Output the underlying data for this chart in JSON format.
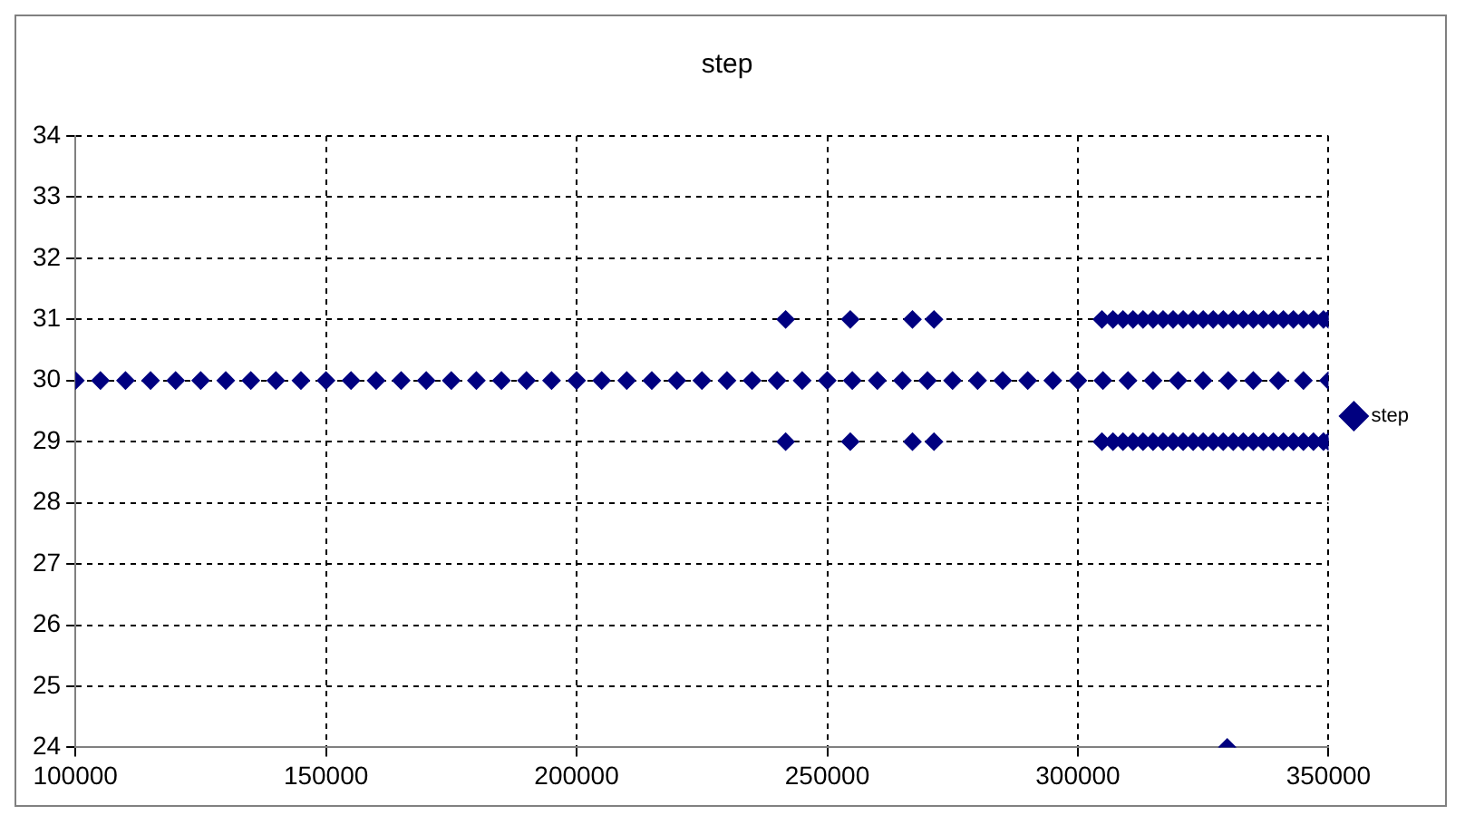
{
  "chart_data": {
    "type": "scatter",
    "title": "step",
    "xlim": [
      100000,
      350000
    ],
    "xticks": [
      100000,
      150000,
      200000,
      250000,
      300000,
      350000
    ],
    "ylim": [
      24,
      34
    ],
    "yticks": [
      24,
      25,
      26,
      27,
      28,
      29,
      30,
      31,
      32,
      33,
      34
    ],
    "grid": true,
    "legend": "right",
    "marker": "diamond",
    "series": [
      {
        "name": "step",
        "color": "#000080",
        "x": [
          100000,
          105000,
          110000,
          115000,
          120000,
          125000,
          130000,
          135000,
          140000,
          145000,
          150000,
          155000,
          160000,
          165000,
          170000,
          175000,
          180000,
          185000,
          190000,
          195000,
          200000,
          205000,
          210000,
          215000,
          220000,
          225000,
          230000,
          235000,
          240000,
          245000,
          250000,
          255000,
          260000,
          265000,
          270000,
          275000,
          280000,
          285000,
          290000,
          295000,
          300000,
          305000,
          310000,
          315000,
          320000,
          325000,
          330000,
          335000,
          340000,
          345000,
          350000,
          241700,
          254600,
          267000,
          271300,
          304800,
          307000,
          309000,
          311000,
          313000,
          315000,
          317000,
          319000,
          321000,
          323000,
          325000,
          327000,
          329000,
          331000,
          333000,
          335000,
          337000,
          339000,
          341000,
          343000,
          345000,
          347000,
          349000,
          350000,
          241700,
          254600,
          267000,
          271300,
          304800,
          307000,
          309000,
          311000,
          313000,
          315000,
          317000,
          319000,
          321000,
          323000,
          325000,
          327000,
          329000,
          331000,
          333000,
          335000,
          337000,
          339000,
          341000,
          343000,
          345000,
          347000,
          349000,
          350000,
          329800
        ],
        "values": [
          30,
          30,
          30,
          30,
          30,
          30,
          30,
          30,
          30,
          30,
          30,
          30,
          30,
          30,
          30,
          30,
          30,
          30,
          30,
          30,
          30,
          30,
          30,
          30,
          30,
          30,
          30,
          30,
          30,
          30,
          30,
          30,
          30,
          30,
          30,
          30,
          30,
          30,
          30,
          30,
          30,
          30,
          30,
          30,
          30,
          30,
          30,
          30,
          30,
          30,
          30,
          31,
          31,
          31,
          31,
          31,
          31,
          31,
          31,
          31,
          31,
          31,
          31,
          31,
          31,
          31,
          31,
          31,
          31,
          31,
          31,
          31,
          31,
          31,
          31,
          31,
          31,
          31,
          31,
          29,
          29,
          29,
          29,
          29,
          29,
          29,
          29,
          29,
          29,
          29,
          29,
          29,
          29,
          29,
          29,
          29,
          29,
          29,
          29,
          29,
          29,
          29,
          29,
          29,
          29,
          29,
          29,
          24
        ]
      }
    ]
  }
}
